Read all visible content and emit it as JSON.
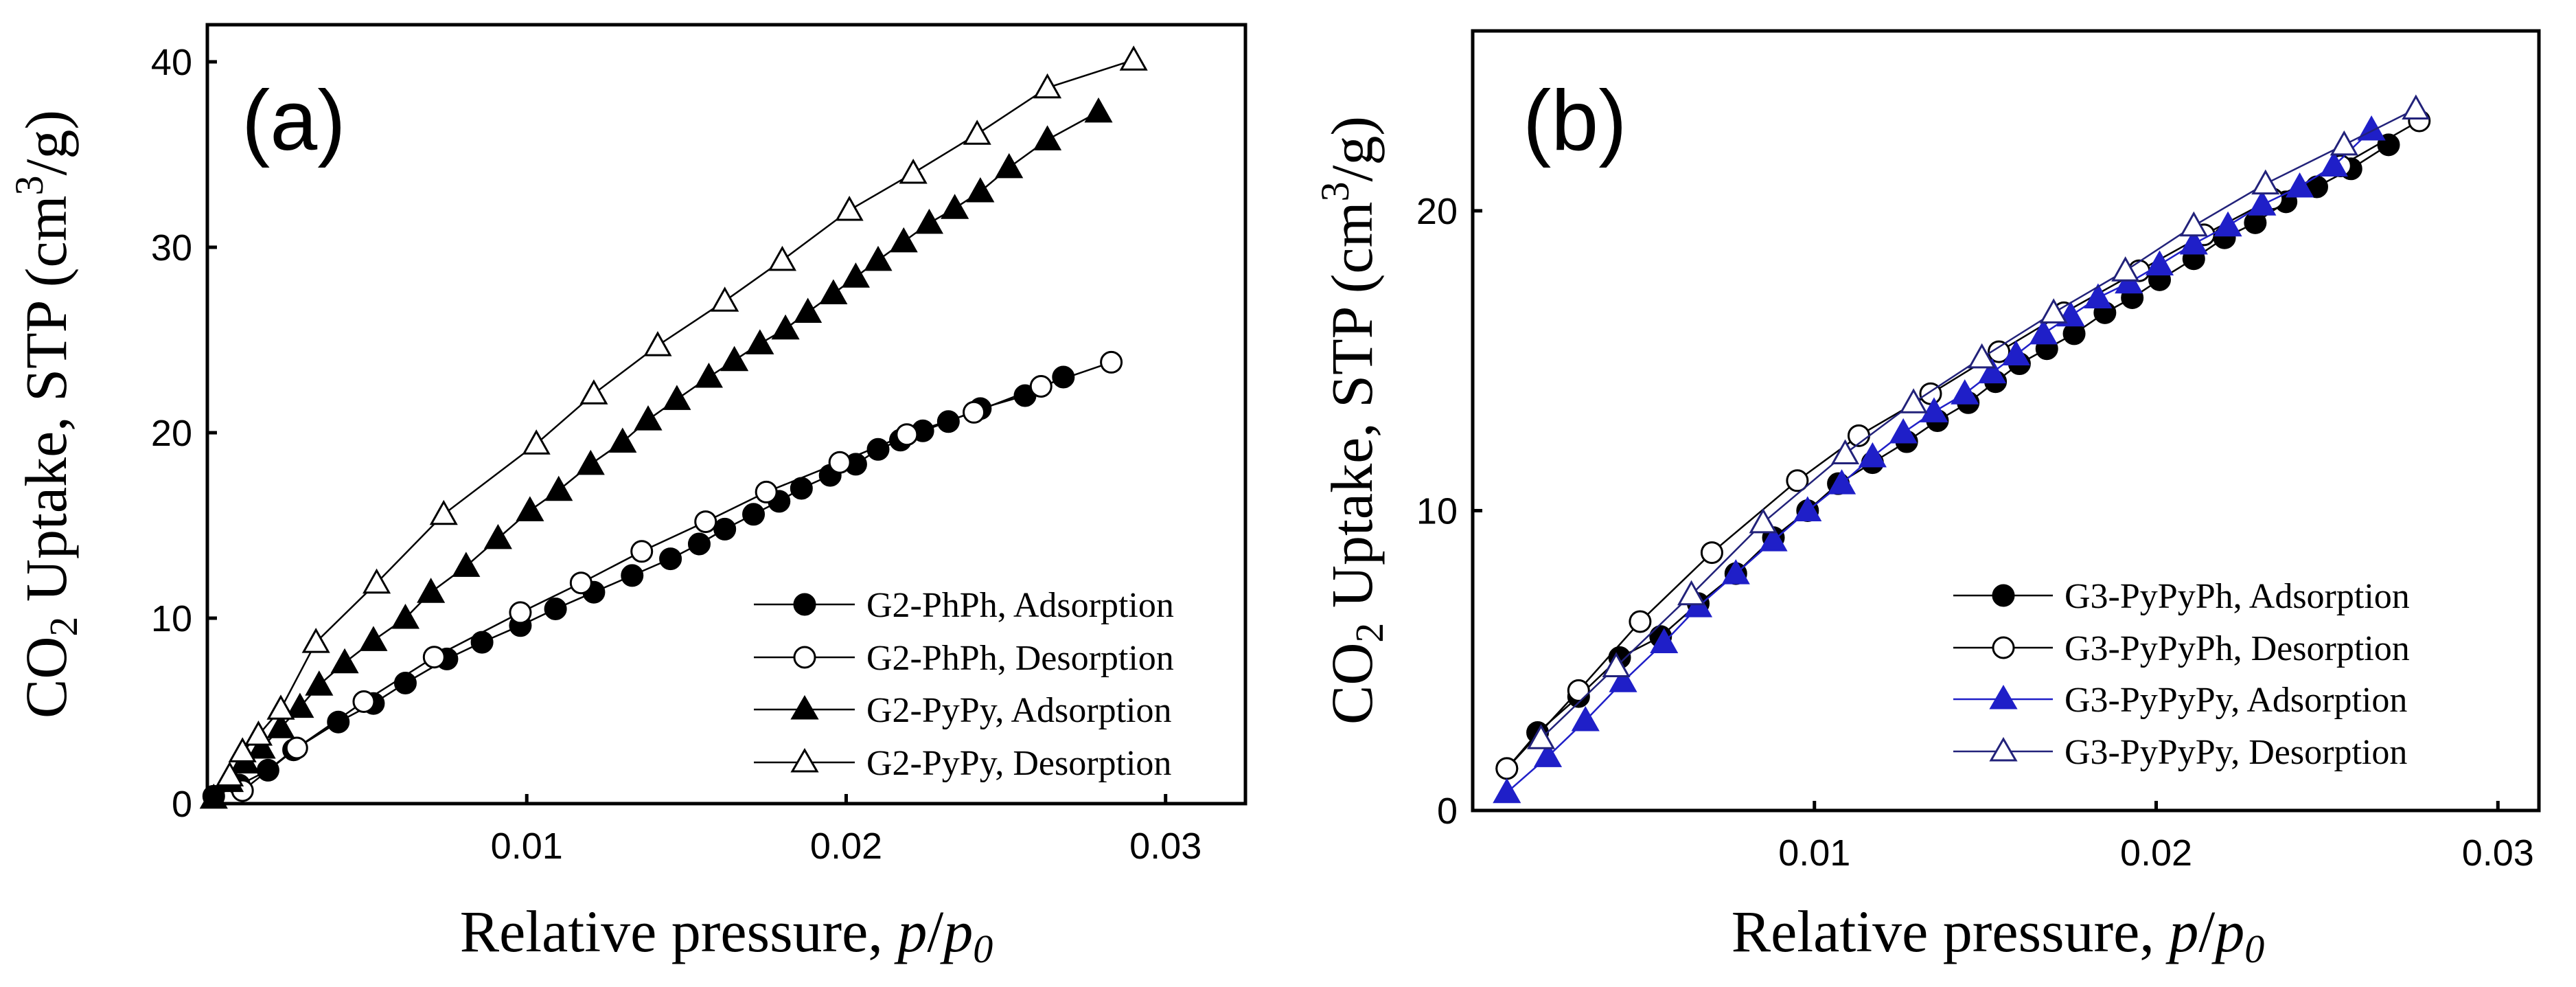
{
  "chart_data": [
    {
      "type": "line",
      "panel_label": "(a)",
      "xlabel": "Relative pressure, p/p0",
      "xlabel_parts": {
        "main": "Relative pressure, ",
        "p": "p",
        "slash": "/",
        "p2": "p",
        "sub": "0"
      },
      "ylabel_parts": {
        "co": "CO",
        "sub": "2",
        "mid": " Uptake, STP (cm",
        "sup": "3",
        "end": "/g)"
      },
      "xlim": [
        0,
        0.0325
      ],
      "ylim": [
        0,
        42
      ],
      "xticks": [
        0.01,
        0.02,
        0.03
      ],
      "xtick_labels": [
        "0.01",
        "0.02",
        "0.03"
      ],
      "yticks": [
        0,
        10,
        20,
        30,
        40
      ],
      "ytick_labels": [
        "0",
        "10",
        "20",
        "30",
        "40"
      ],
      "legend_position": "bottom-right",
      "series": [
        {
          "name": "G2-PhPh, Adsorption",
          "marker": "circle",
          "filled": true,
          "color": "#000000",
          "x": [
            0.0002,
            0.001,
            0.0019,
            0.0027,
            0.0041,
            0.0052,
            0.0062,
            0.0075,
            0.0086,
            0.0098,
            0.0109,
            0.0121,
            0.0133,
            0.0145,
            0.0154,
            0.0162,
            0.0171,
            0.0179,
            0.0186,
            0.0195,
            0.0203,
            0.021,
            0.0217,
            0.0224,
            0.0232,
            0.0242,
            0.0256,
            0.0268
          ],
          "y": [
            0.4,
            1,
            1.8,
            2.9,
            4.4,
            5.4,
            6.5,
            7.8,
            8.7,
            9.6,
            10.5,
            11.4,
            12.3,
            13.2,
            14,
            14.8,
            15.6,
            16.3,
            17,
            17.7,
            18.3,
            19.1,
            19.6,
            20.1,
            20.6,
            21.3,
            22,
            23
          ]
        },
        {
          "name": "G2-PhPh, Desorption",
          "marker": "circle",
          "filled": false,
          "color": "#000000",
          "x": [
            0.0011,
            0.0028,
            0.0049,
            0.0071,
            0.0098,
            0.0117,
            0.0136,
            0.0156,
            0.0175,
            0.0198,
            0.0219,
            0.024,
            0.0261,
            0.0283
          ],
          "y": [
            0.7,
            3,
            5.5,
            7.9,
            10.3,
            11.9,
            13.6,
            15.2,
            16.8,
            18.4,
            19.9,
            21.1,
            22.5,
            23.8
          ]
        },
        {
          "name": "G2-PyPy, Adsorption",
          "marker": "triangle",
          "filled": true,
          "color": "#000000",
          "x": [
            0.0002,
            0.0007,
            0.0012,
            0.0017,
            0.0023,
            0.0029,
            0.0035,
            0.0043,
            0.0052,
            0.0062,
            0.007,
            0.0081,
            0.0091,
            0.0101,
            0.011,
            0.012,
            0.013,
            0.0138,
            0.0147,
            0.0157,
            0.0165,
            0.0173,
            0.0181,
            0.0188,
            0.0196,
            0.0203,
            0.021,
            0.0218,
            0.0226,
            0.0234,
            0.0242,
            0.0251,
            0.0263,
            0.0279
          ],
          "y": [
            0.3,
            1.2,
            2.2,
            3,
            4.1,
            5.2,
            6.4,
            7.6,
            8.8,
            10,
            11.4,
            12.8,
            14.3,
            15.8,
            16.9,
            18.3,
            19.5,
            20.7,
            21.8,
            23,
            23.9,
            24.8,
            25.6,
            26.5,
            27.5,
            28.4,
            29.3,
            30.3,
            31.3,
            32.1,
            33,
            34.3,
            35.8,
            37.3
          ]
        },
        {
          "name": "G2-PyPy, Desorption",
          "marker": "triangle",
          "filled": false,
          "color": "#000000",
          "x": [
            0.0007,
            0.0011,
            0.0016,
            0.0023,
            0.0034,
            0.0053,
            0.0074,
            0.0103,
            0.0121,
            0.0141,
            0.0162,
            0.018,
            0.0201,
            0.0221,
            0.0241,
            0.0263,
            0.029
          ],
          "y": [
            1.5,
            2.8,
            3.7,
            5.1,
            8.7,
            11.9,
            15.6,
            19.4,
            22.1,
            24.7,
            27.1,
            29.3,
            32,
            34,
            36.1,
            38.6,
            40.1
          ]
        }
      ],
      "legend": [
        "G2-PhPh, Adsorption",
        "G2-PhPh, Desorption",
        "G2-PyPy, Adsorption",
        "G2-PyPy, Desorption"
      ]
    },
    {
      "type": "line",
      "panel_label": "(b)",
      "xlabel": "Relative pressure, p/p0",
      "xlabel_parts": {
        "main": "Relative pressure, ",
        "p": "p",
        "slash": "/",
        "p2": "p",
        "sub": "0"
      },
      "ylabel_parts": {
        "co": "CO",
        "sub": "2",
        "mid": " Uptake, STP (cm",
        "sup": "3",
        "end": "/g)"
      },
      "xlim": [
        0,
        0.0312
      ],
      "ylim": [
        0,
        26
      ],
      "xticks": [
        0.01,
        0.02,
        0.03
      ],
      "xtick_labels": [
        "0.01",
        "0.02",
        "0.03"
      ],
      "yticks": [
        0,
        10,
        20
      ],
      "ytick_labels": [
        "0",
        "10",
        "20"
      ],
      "legend_position": "bottom-right",
      "series": [
        {
          "name": "G3-PyPyPh, Adsorption",
          "marker": "circle",
          "filled": true,
          "color": "#000000",
          "x": [
            0.001,
            0.0019,
            0.0031,
            0.0043,
            0.0055,
            0.0066,
            0.0077,
            0.0088,
            0.0098,
            0.0107,
            0.0117,
            0.0127,
            0.0136,
            0.0145,
            0.0153,
            0.016,
            0.0168,
            0.0176,
            0.0185,
            0.0193,
            0.0201,
            0.0211,
            0.022,
            0.0229,
            0.0238,
            0.0247,
            0.0257,
            0.0268
          ],
          "y": [
            1.4,
            2.6,
            3.8,
            5.1,
            5.8,
            6.9,
            7.9,
            9.1,
            10,
            10.9,
            11.6,
            12.3,
            13,
            13.6,
            14.3,
            14.9,
            15.4,
            15.9,
            16.6,
            17.1,
            17.7,
            18.4,
            19.1,
            19.6,
            20.3,
            20.8,
            21.4,
            22.2
          ]
        },
        {
          "name": "G3-PyPyPh, Desorption",
          "marker": "circle",
          "filled": false,
          "color": "#000000",
          "x": [
            0.001,
            0.0031,
            0.0049,
            0.007,
            0.0095,
            0.0113,
            0.0134,
            0.0154,
            0.0173,
            0.0195,
            0.0214,
            0.0234,
            0.0254,
            0.0277
          ],
          "y": [
            1.4,
            4,
            6.3,
            8.6,
            11,
            12.5,
            13.9,
            15.3,
            16.6,
            18,
            19.2,
            20.4,
            21.5,
            23
          ]
        },
        {
          "name": "G3-PyPyPy, Adsorption",
          "marker": "triangle",
          "filled": true,
          "color": "#1f1fc8",
          "x": [
            0.001,
            0.0022,
            0.0033,
            0.0044,
            0.0056,
            0.0066,
            0.0077,
            0.0088,
            0.0098,
            0.0108,
            0.0117,
            0.0126,
            0.0135,
            0.0144,
            0.0152,
            0.0159,
            0.0167,
            0.0175,
            0.0183,
            0.0192,
            0.0201,
            0.0211,
            0.0221,
            0.0231,
            0.0242,
            0.0252,
            0.0263
          ],
          "y": [
            0.6,
            1.8,
            3,
            4.3,
            5.6,
            6.8,
            7.9,
            9,
            10,
            10.9,
            11.8,
            12.6,
            13.3,
            13.9,
            14.6,
            15.2,
            15.9,
            16.5,
            17.1,
            17.6,
            18.2,
            18.9,
            19.5,
            20.2,
            20.8,
            21.5,
            22.7
          ]
        },
        {
          "name": "G3-PyPyPy, Desorption",
          "marker": "triangle",
          "filled": false,
          "color": "#22227a",
          "x": [
            0.002,
            0.0042,
            0.0064,
            0.0085,
            0.0109,
            0.0129,
            0.0149,
            0.017,
            0.0191,
            0.0211,
            0.0232,
            0.0255,
            0.0276
          ],
          "y": [
            2.4,
            4.8,
            7.2,
            9.6,
            11.9,
            13.6,
            15.1,
            16.6,
            18,
            19.5,
            20.9,
            22.2,
            23.4
          ]
        }
      ],
      "legend": [
        "G3-PyPyPh, Adsorption",
        "G3-PyPyPh, Desorption",
        "G3-PyPyPy, Adsorption",
        "G3-PyPyPy, Desorption"
      ]
    }
  ]
}
